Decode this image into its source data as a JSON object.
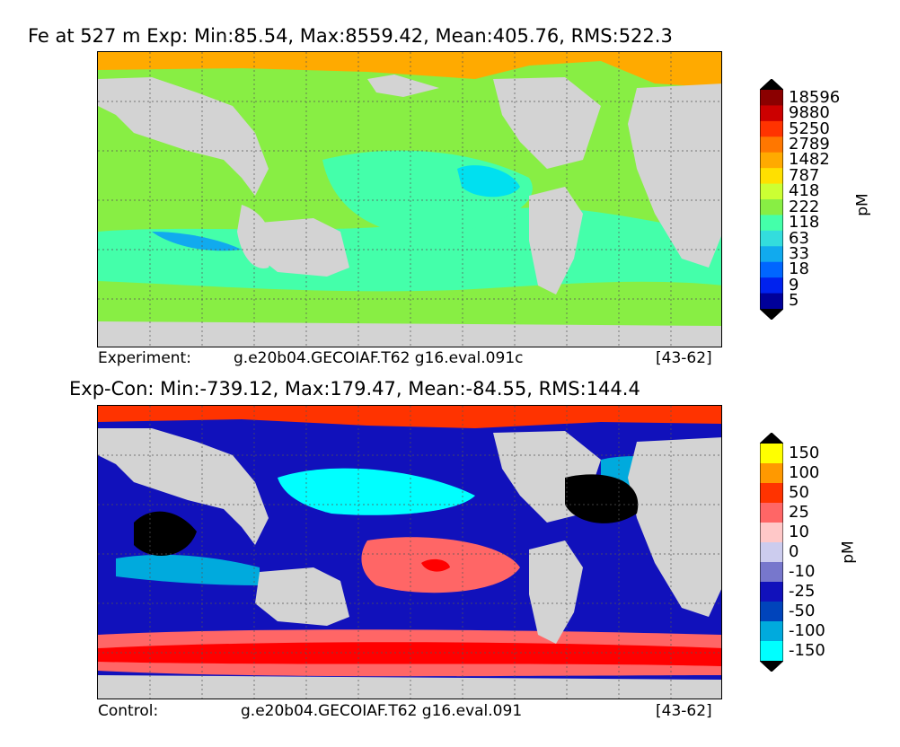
{
  "top": {
    "title": "Fe at 527 m Exp: Min:85.54, Max:8559.42, Mean:405.76, RMS:522.3",
    "caption_label": "Experiment:",
    "caption_case": "g.e20b04.GECOIAF.T62 g16.eval.091c",
    "caption_years": "[43-62]",
    "colorbar_unit": "pM",
    "colorbar_ticks": [
      "18596",
      "9880",
      "5250",
      "2789",
      "1482",
      "787",
      "418",
      "222",
      "118",
      "63",
      "33",
      "18",
      "9",
      "5"
    ],
    "colorbar_colors": [
      "#8b0000",
      "#cc0000",
      "#ff3300",
      "#ff7700",
      "#ffaa00",
      "#ffe000",
      "#ccff33",
      "#88ee44",
      "#44ffaa",
      "#33dddd",
      "#11aaee",
      "#0066ff",
      "#0022ee",
      "#000099"
    ]
  },
  "bottom": {
    "title": "Exp-Con: Min:-739.12, Max:179.47, Mean:-84.55, RMS:144.4",
    "caption_label": "Control:",
    "caption_case": "g.e20b04.GECOIAF.T62 g16.eval.091",
    "caption_years": "[43-62]",
    "colorbar_unit": "pM",
    "colorbar_ticks": [
      "150",
      "100",
      "50",
      "25",
      "10",
      "0",
      "-10",
      "-25",
      "-50",
      "-100",
      "-150"
    ],
    "colorbar_colors": [
      "#ffff00",
      "#ff9900",
      "#ff3300",
      "#ff6666",
      "#ffc8c8",
      "#ccccee",
      "#7777cc",
      "#1111bb",
      "#0044bb",
      "#00aadd",
      "#00ffff"
    ]
  },
  "chart_data": [
    {
      "type": "heatmap",
      "title": "Fe at 527 m Exp: Min:85.54, Max:8559.42, Mean:405.76, RMS:522.3",
      "stats": {
        "min": 85.54,
        "max": 8559.42,
        "mean": 405.76,
        "rms": 522.3
      },
      "units": "pM",
      "levels": [
        5,
        9,
        18,
        33,
        63,
        118,
        222,
        418,
        787,
        1482,
        2789,
        5250,
        9880,
        18596
      ],
      "colorbar": "vertical, right"
    },
    {
      "type": "heatmap",
      "title": "Exp-Con: Min:-739.12, Max:179.47, Mean:-84.55, RMS:144.4",
      "stats": {
        "min": -739.12,
        "max": 179.47,
        "mean": -84.55,
        "rms": 144.4
      },
      "units": "pM",
      "levels": [
        -150,
        -100,
        -50,
        -25,
        -10,
        0,
        10,
        25,
        50,
        100,
        150
      ],
      "colorbar": "vertical, right"
    }
  ]
}
